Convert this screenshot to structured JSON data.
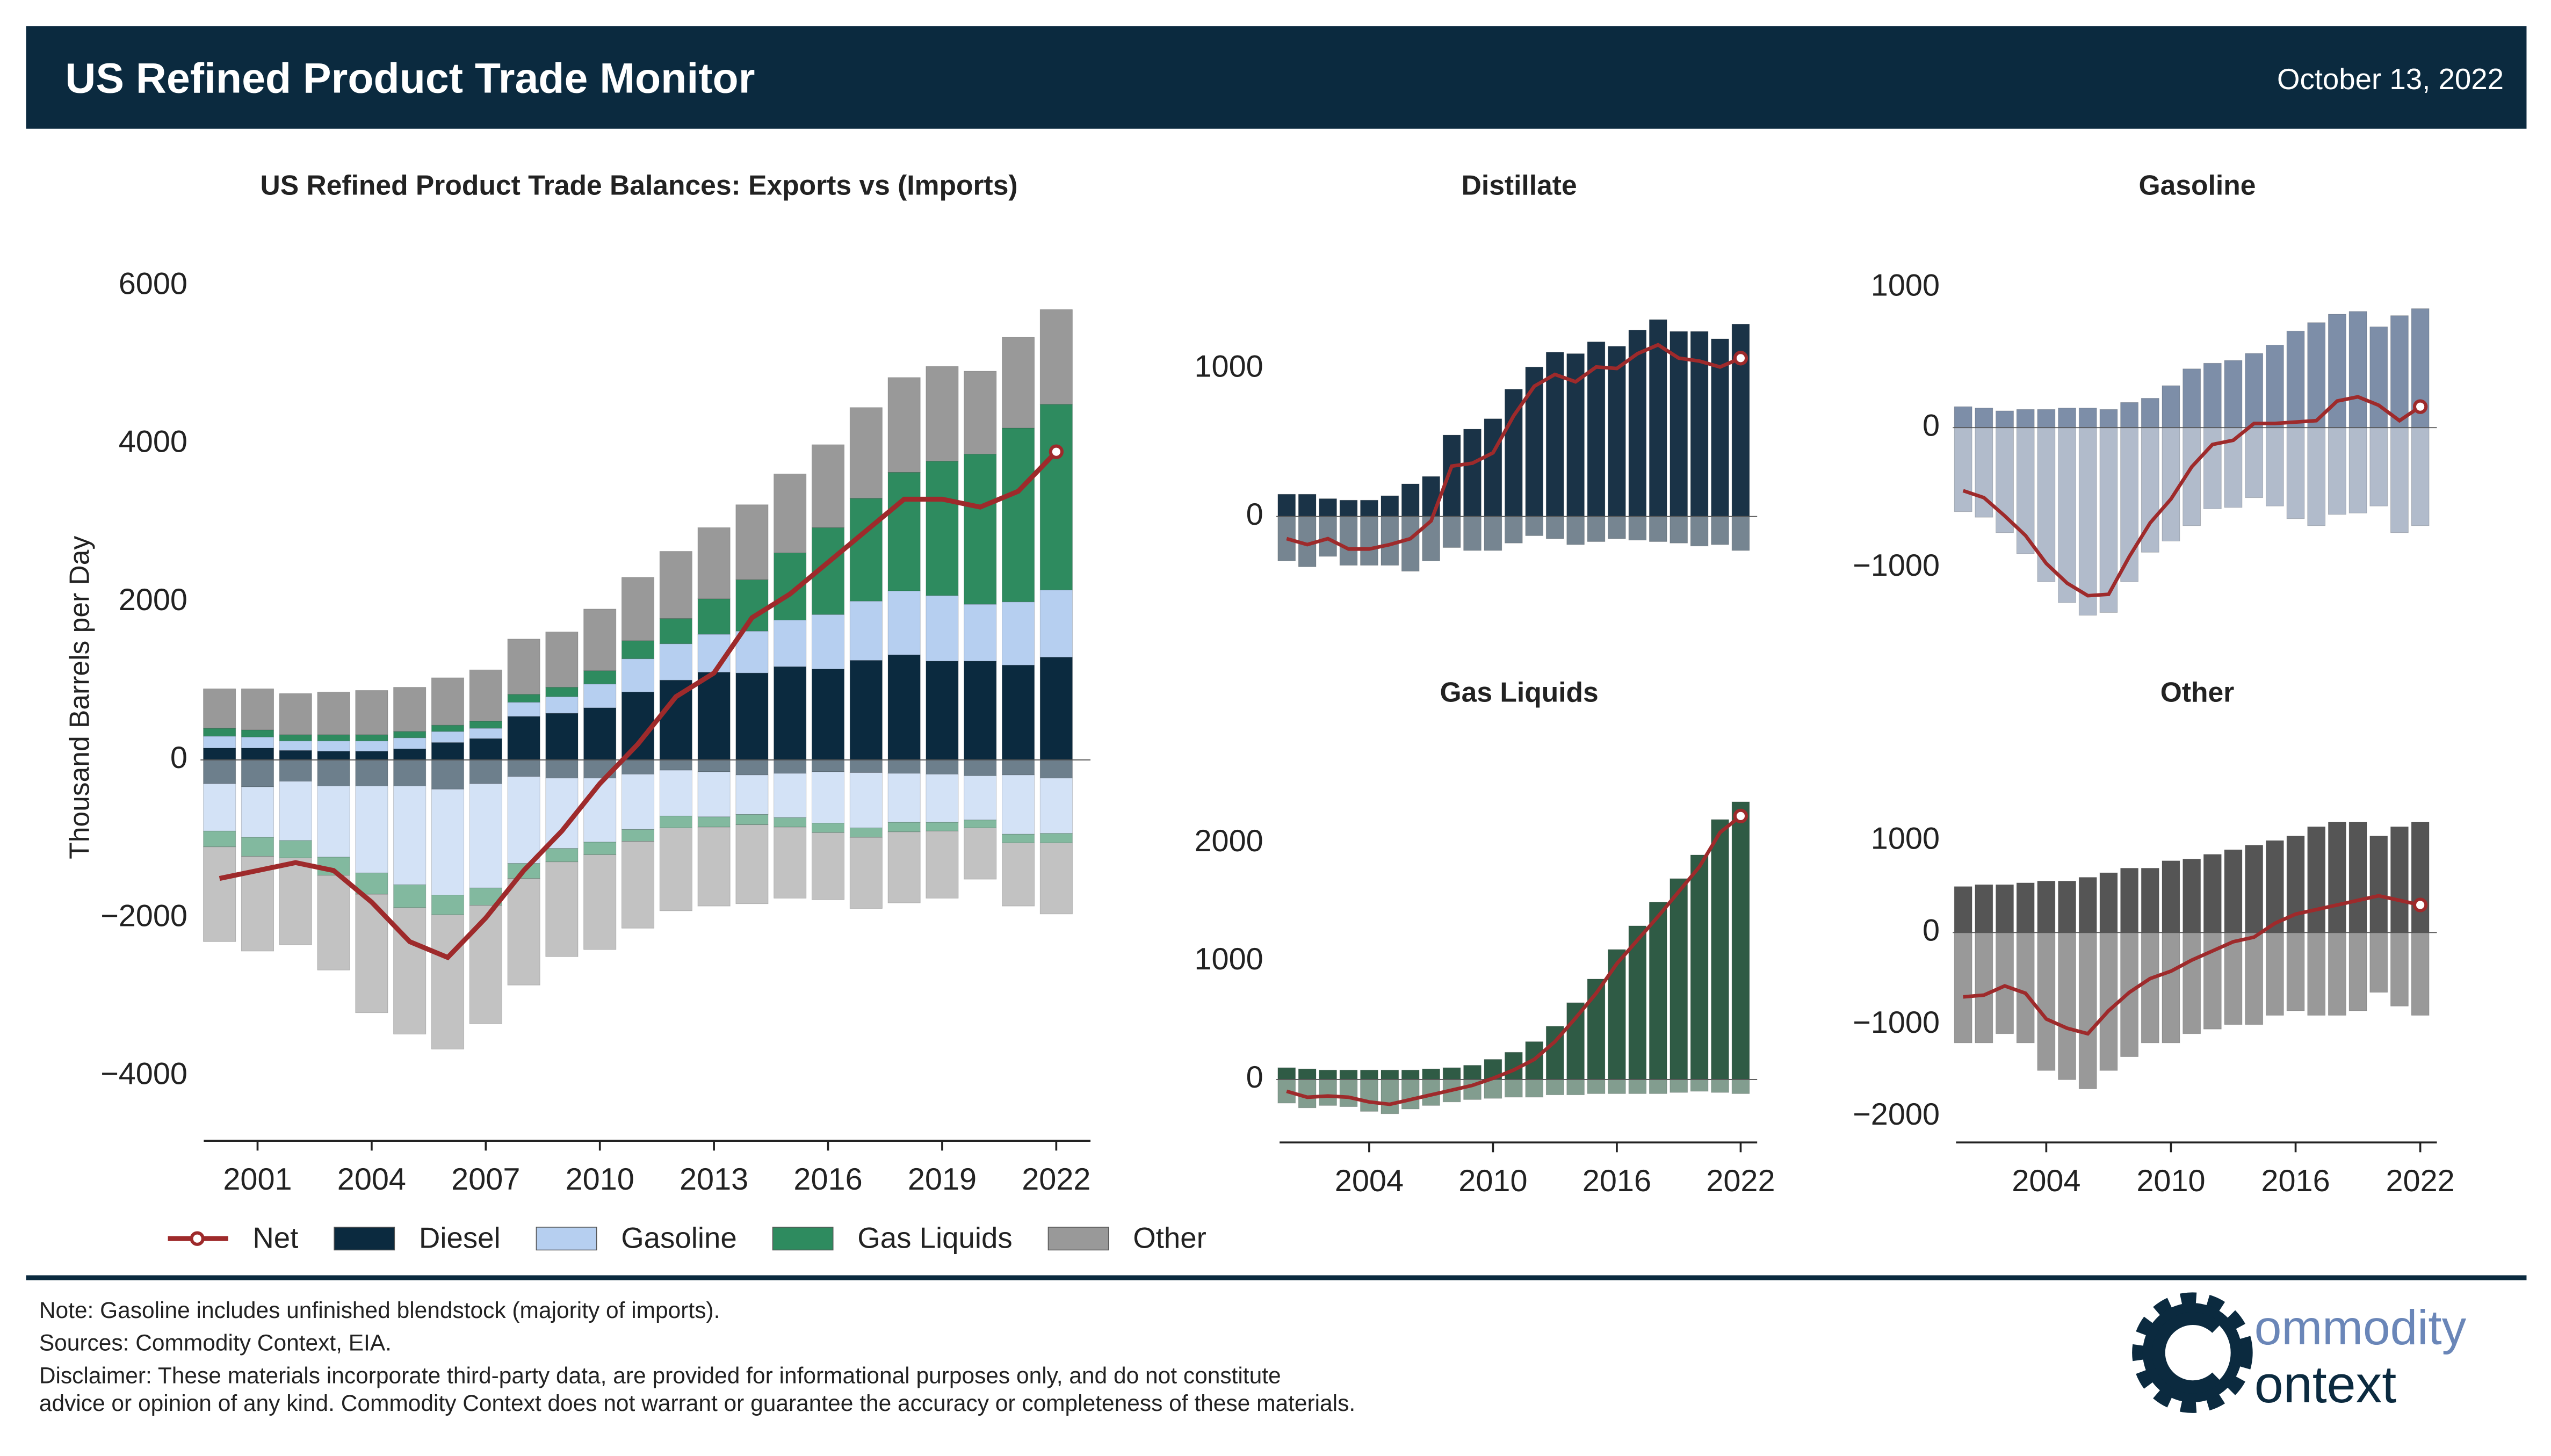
{
  "header": {
    "title": "US Refined Product Trade Monitor",
    "date": "October 13, 2022"
  },
  "footer": {
    "note": "Note: Gasoline includes unfinished blendstock (majority of imports).",
    "sources": "Sources: Commodity Context, EIA.",
    "disclaimer": [
      "Disclaimer: These materials incorporate third-party data, are provided for informational purposes only, and do not constitute",
      "advice or opinion of any kind. Commodity Context does not warrant or guarantee the accuracy or completeness of these materials."
    ],
    "logo": [
      "ommodity",
      "ontext"
    ]
  },
  "chart_data": {
    "type": "bar",
    "title": "US Refined Product Trade Balances: Exports vs (Imports)",
    "ylabel": "Thousand Barrels per Day",
    "x": [
      2000,
      2001,
      2002,
      2003,
      2004,
      2005,
      2006,
      2007,
      2008,
      2009,
      2010,
      2011,
      2012,
      2013,
      2014,
      2015,
      2016,
      2017,
      2018,
      2019,
      2020,
      2021,
      2022
    ],
    "xlim": [
      1999.5,
      2022.9
    ],
    "xticks": [
      2001,
      2004,
      2007,
      2010,
      2013,
      2016,
      2019,
      2022
    ],
    "ylim": [
      -4800,
      6400
    ],
    "yticks": [
      -4000,
      -2000,
      0,
      2000,
      4000,
      6000
    ],
    "net_name": "Net",
    "net_color": "#9e2a2b",
    "net": [
      -1500,
      -1400,
      -1300,
      -1400,
      -1800,
      -2300,
      -2500,
      -2000,
      -1400,
      -900,
      -300,
      200,
      800,
      1100,
      1800,
      2100,
      2500,
      2900,
      3300,
      3300,
      3200,
      3400,
      3900
    ],
    "series": [
      {
        "name": "Diesel",
        "color": "#0b2a3f",
        "exports": [
          150,
          150,
          120,
          110,
          110,
          140,
          220,
          270,
          550,
          590,
          660,
          860,
          1010,
          1110,
          1100,
          1180,
          1150,
          1260,
          1330,
          1250,
          1250,
          1200,
          1300
        ],
        "imports": [
          -300,
          -340,
          -270,
          -330,
          -330,
          -330,
          -370,
          -300,
          -210,
          -230,
          -230,
          -180,
          -130,
          -150,
          -190,
          -170,
          -150,
          -160,
          -170,
          -180,
          -200,
          -190,
          -230
        ],
        "net": [
          -150,
          -190,
          -150,
          -220,
          -220,
          -190,
          -150,
          -30,
          340,
          360,
          430,
          680,
          880,
          960,
          910,
          1010,
          1000,
          1100,
          1160,
          1070,
          1050,
          1010,
          1070
        ]
      },
      {
        "name": "Gasoline",
        "color": "#b6cff0",
        "exports": [
          150,
          140,
          120,
          130,
          130,
          140,
          140,
          130,
          180,
          210,
          300,
          420,
          460,
          480,
          530,
          590,
          690,
          750,
          810,
          830,
          720,
          800,
          850
        ],
        "imports": [
          -600,
          -640,
          -750,
          -900,
          -1100,
          -1250,
          -1340,
          -1320,
          -1100,
          -890,
          -810,
          -700,
          -580,
          -570,
          -500,
          -560,
          -650,
          -700,
          -620,
          -610,
          -560,
          -750,
          -700
        ],
        "net": [
          -450,
          -500,
          -630,
          -770,
          -970,
          -1110,
          -1200,
          -1190,
          -920,
          -680,
          -510,
          -280,
          -120,
          -90,
          30,
          30,
          40,
          50,
          190,
          220,
          160,
          50,
          150
        ]
      },
      {
        "name": "Gas Liquids",
        "color": "#2e8b5f",
        "exports": [
          100,
          90,
          80,
          80,
          80,
          80,
          80,
          90,
          100,
          120,
          170,
          230,
          320,
          450,
          650,
          850,
          1100,
          1300,
          1500,
          1700,
          1900,
          2200,
          2350
        ],
        "imports": [
          -200,
          -240,
          -220,
          -230,
          -270,
          -290,
          -250,
          -220,
          -190,
          -170,
          -160,
          -150,
          -150,
          -130,
          -130,
          -120,
          -120,
          -120,
          -120,
          -110,
          -100,
          -110,
          -120
        ],
        "net": [
          -100,
          -150,
          -140,
          -150,
          -190,
          -210,
          -170,
          -130,
          -90,
          -50,
          10,
          80,
          170,
          320,
          520,
          730,
          980,
          1180,
          1380,
          1590,
          1800,
          2090,
          2230
        ]
      },
      {
        "name": "Other",
        "color": "#999999",
        "exports": [
          500,
          520,
          520,
          540,
          560,
          560,
          600,
          650,
          700,
          700,
          780,
          800,
          850,
          900,
          950,
          1000,
          1050,
          1150,
          1200,
          1200,
          1050,
          1150,
          1200
        ],
        "imports": [
          -1200,
          -1200,
          -1100,
          -1200,
          -1500,
          -1600,
          -1700,
          -1500,
          -1350,
          -1200,
          -1200,
          -1100,
          -1050,
          -1000,
          -1000,
          -900,
          -850,
          -900,
          -900,
          -850,
          -650,
          -800,
          -900
        ],
        "net": [
          -700,
          -680,
          -580,
          -660,
          -940,
          -1040,
          -1100,
          -850,
          -650,
          -500,
          -420,
          -300,
          -200,
          -100,
          -50,
          100,
          200,
          250,
          300,
          350,
          400,
          350,
          300
        ]
      }
    ],
    "panel_xlim": [
      1999.5,
      2022.8
    ],
    "panel_xticks": [
      2004,
      2010,
      2016,
      2022
    ],
    "panels": [
      {
        "title": "Distillate",
        "color": "#1a3347",
        "ylim": [
          -750,
          1750
        ],
        "yticks": [
          0,
          1000
        ]
      },
      {
        "title": "Gasoline",
        "color": "#7d8ea8",
        "ylim": [
          -1450,
          1250
        ],
        "yticks": [
          -1000,
          0,
          1000
        ]
      },
      {
        "title": "Gas Liquids",
        "color": "#2f5b45",
        "ylim": [
          -450,
          2750
        ],
        "yticks": [
          0,
          1000,
          2000
        ]
      },
      {
        "title": "Other",
        "color": "#555555",
        "ylim": [
          -2300,
          1900
        ],
        "yticks": [
          -2000,
          -1000,
          0,
          1000
        ]
      }
    ]
  }
}
